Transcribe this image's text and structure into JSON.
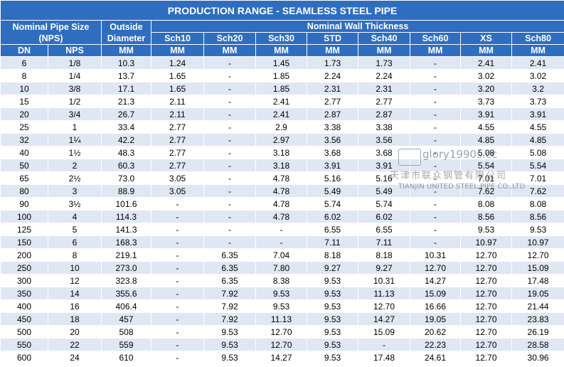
{
  "title": "PRODUCTION RANGE - SEAMLESS STEEL PIPE",
  "headers": {
    "nominal": "Nominal Pipe Size (NPS)",
    "outside": "Outside Diameter",
    "wall": "Nominal Wall Thickness",
    "schedules": [
      "Sch10",
      "Sch20",
      "Sch30",
      "STD",
      "Sch40",
      "Sch60",
      "XS",
      "Sch80"
    ],
    "units": [
      "DN",
      "NPS",
      "MM",
      "MM",
      "MM",
      "MM",
      "MM",
      "MM",
      "MM",
      "MM",
      "MM"
    ]
  },
  "rows": [
    [
      "6",
      "1/8",
      "10.3",
      "1.24",
      "-",
      "1.45",
      "1.73",
      "1.73",
      "-",
      "2.41",
      "2.41"
    ],
    [
      "8",
      "1/4",
      "13.7",
      "1.65",
      "-",
      "1.85",
      "2.24",
      "2.24",
      "-",
      "3.02",
      "3.02"
    ],
    [
      "10",
      "3/8",
      "17.1",
      "1.65",
      "-",
      "1.85",
      "2.31",
      "2.31",
      "-",
      "3.20",
      "3.2"
    ],
    [
      "15",
      "1/2",
      "21.3",
      "2.11",
      "-",
      "2.41",
      "2.77",
      "2.77",
      "-",
      "3.73",
      "3.73"
    ],
    [
      "20",
      "3/4",
      "26.7",
      "2.11",
      "-",
      "2.41",
      "2.87",
      "2.87",
      "-",
      "3.91",
      "3.91"
    ],
    [
      "25",
      "1",
      "33.4",
      "2.77",
      "-",
      "2.9",
      "3.38",
      "3.38",
      "-",
      "4.55",
      "4.55"
    ],
    [
      "32",
      "1¼",
      "42.2",
      "2.77",
      "-",
      "2.97",
      "3.56",
      "3.56",
      "-",
      "4.85",
      "4.85"
    ],
    [
      "40",
      "1½",
      "48.3",
      "2.77",
      "-",
      "3.18",
      "3.68",
      "3.68",
      "-",
      "5.08",
      "5.08"
    ],
    [
      "50",
      "2",
      "60.3",
      "2.77",
      "-",
      "3.18",
      "3.91",
      "3.91",
      "-",
      "5.54",
      "5.54"
    ],
    [
      "65",
      "2½",
      "73.0",
      "3.05",
      "-",
      "4.78",
      "5.16",
      "5.16",
      "-",
      "7.01",
      "7.01"
    ],
    [
      "80",
      "3",
      "88.9",
      "3.05",
      "-",
      "4.78",
      "5.49",
      "5.49",
      "-",
      "7.62",
      "7.62"
    ],
    [
      "90",
      "3½",
      "101.6",
      "-",
      "-",
      "4.78",
      "5.74",
      "5.74",
      "-",
      "8.08",
      "8.08"
    ],
    [
      "100",
      "4",
      "114.3",
      "-",
      "-",
      "4.78",
      "6.02",
      "6.02",
      "-",
      "8.56",
      "8.56"
    ],
    [
      "125",
      "5",
      "141.3",
      "-",
      "-",
      "-",
      "6.55",
      "6.55",
      "-",
      "9.53",
      "9.53"
    ],
    [
      "150",
      "6",
      "168.3",
      "-",
      "-",
      "-",
      "7.11",
      "7.11",
      "-",
      "10.97",
      "10.97"
    ],
    [
      "200",
      "8",
      "219.1",
      "-",
      "6.35",
      "7.04",
      "8.18",
      "8.18",
      "10.31",
      "12.70",
      "12.70"
    ],
    [
      "250",
      "10",
      "273.0",
      "-",
      "6.35",
      "7.80",
      "9.27",
      "9.27",
      "12.70",
      "12.70",
      "15.09"
    ],
    [
      "300",
      "12",
      "323.8",
      "-",
      "6.35",
      "8.38",
      "9.53",
      "10.31",
      "14.27",
      "12.70",
      "17.48"
    ],
    [
      "350",
      "14",
      "355.6",
      "-",
      "7.92",
      "9.53",
      "9.53",
      "11.13",
      "15.09",
      "12.70",
      "19.05"
    ],
    [
      "400",
      "16",
      "406.4",
      "-",
      "7.92",
      "9.53",
      "9.53",
      "12.70",
      "16.66",
      "12.70",
      "21.44"
    ],
    [
      "450",
      "18",
      "457",
      "-",
      "7.92",
      "11.13",
      "9.53",
      "14.27",
      "19.05",
      "12.70",
      "23.83"
    ],
    [
      "500",
      "20",
      "508",
      "-",
      "9.53",
      "12.70",
      "9.53",
      "15.09",
      "20.62",
      "12.70",
      "26.19"
    ],
    [
      "550",
      "22",
      "559",
      "-",
      "9.53",
      "12.70",
      "9.53",
      "-",
      "22.23",
      "12.70",
      "28.58"
    ],
    [
      "600",
      "24",
      "610",
      "-",
      "9.53",
      "14.27",
      "9.53",
      "17.48",
      "24.61",
      "12.70",
      "30.96"
    ]
  ],
  "watermark": {
    "domain": "glory1990s.cc",
    "cn": "天津市联众钢管有限公司",
    "en": "TIANJIN UNITED STEEL PIPE CO.,LTD"
  }
}
